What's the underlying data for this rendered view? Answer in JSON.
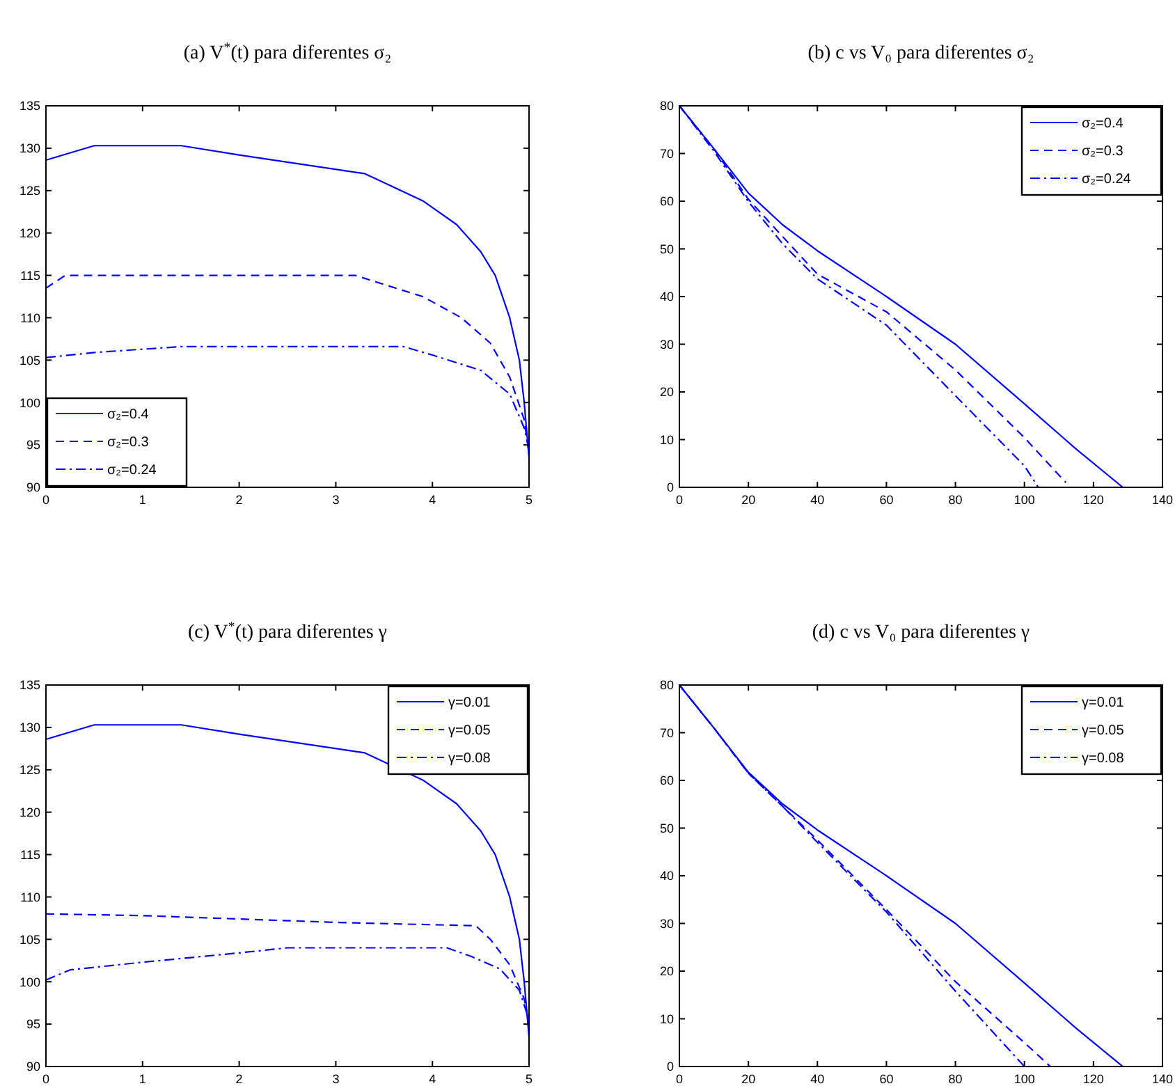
{
  "chart_data": [
    {
      "type": "line",
      "title": "(a) V$^{*}$(t) para diferentes σ₂",
      "xlim": [
        0,
        5
      ],
      "xticks": [
        0,
        1,
        2,
        3,
        4,
        5
      ],
      "ylim": [
        90,
        135
      ],
      "yticks": [
        90,
        95,
        100,
        105,
        110,
        115,
        120,
        125,
        130,
        135
      ],
      "grid": false,
      "legend": "bottom left",
      "series": [
        {
          "name": "σ₂=0.4",
          "color": "#0000ff",
          "line_style": "solid",
          "x": [
            0,
            0.5,
            1.4,
            2,
            3.3,
            3.9,
            4.25,
            4.5,
            4.65,
            4.8,
            4.9,
            4.95,
            5
          ],
          "values": [
            128.6,
            130.3,
            130.3,
            129.2,
            127,
            123.8,
            121,
            117.8,
            115,
            110,
            105,
            100,
            93.5
          ]
        },
        {
          "name": "σ₂=0.3",
          "color": "#0000ff",
          "line_style": "dashed",
          "x": [
            0,
            0.2,
            3.2,
            3.9,
            4.3,
            4.6,
            4.8,
            4.95,
            5
          ],
          "values": [
            113.5,
            115,
            115,
            112.5,
            110,
            107,
            103,
            98,
            94
          ]
        },
        {
          "name": "σ₂=0.24",
          "color": "#0000ff",
          "line_style": "dashdot",
          "x": [
            0,
            0.5,
            1.4,
            3.7,
            4,
            4.5,
            4.8,
            4.95,
            5
          ],
          "values": [
            105.3,
            105.9,
            106.6,
            106.6,
            105.6,
            103.8,
            101,
            97,
            94.5
          ]
        }
      ]
    },
    {
      "type": "line",
      "title": "(b) c vs V₀ para diferentes σ₂",
      "xlim": [
        0,
        140
      ],
      "xticks": [
        0,
        20,
        40,
        60,
        80,
        100,
        120,
        140
      ],
      "ylim": [
        0,
        80
      ],
      "yticks": [
        0,
        10,
        20,
        30,
        40,
        50,
        60,
        70,
        80
      ],
      "grid": false,
      "legend": "top right",
      "series": [
        {
          "name": "σ₂=0.4",
          "color": "#0000ff",
          "line_style": "solid",
          "x": [
            0,
            10,
            20,
            30,
            40,
            60,
            80,
            100,
            115,
            128.5
          ],
          "values": [
            80,
            71,
            61.7,
            55,
            49.6,
            40,
            30,
            17.5,
            8,
            0
          ]
        },
        {
          "name": "σ₂=0.3",
          "color": "#0000ff",
          "line_style": "dashed",
          "x": [
            0,
            10,
            20,
            30,
            40,
            60,
            80,
            100,
            112
          ],
          "values": [
            80,
            71,
            60.4,
            52.5,
            44.7,
            36.8,
            24.6,
            10.4,
            1
          ]
        },
        {
          "name": "σ₂=0.24",
          "color": "#0000ff",
          "line_style": "dashdot",
          "x": [
            0,
            10,
            20,
            30,
            40,
            60,
            80,
            100,
            104
          ],
          "values": [
            80,
            70.5,
            59.9,
            51,
            43.7,
            34,
            19.2,
            4.5,
            0
          ]
        }
      ]
    },
    {
      "type": "line",
      "title": "(c) V$^{*}$(t) para diferentes γ",
      "xlim": [
        0,
        5
      ],
      "xticks": [
        0,
        1,
        2,
        3,
        4,
        5
      ],
      "ylim": [
        90,
        135
      ],
      "yticks": [
        90,
        95,
        100,
        105,
        110,
        115,
        120,
        125,
        130,
        135
      ],
      "grid": false,
      "legend": "top right",
      "series": [
        {
          "name": "γ=0.01",
          "color": "#0000ff",
          "line_style": "solid",
          "x": [
            0,
            0.5,
            1.4,
            2,
            3.3,
            3.9,
            4.25,
            4.5,
            4.65,
            4.8,
            4.9,
            4.95,
            5
          ],
          "values": [
            128.6,
            130.3,
            130.3,
            129.2,
            127,
            123.8,
            121,
            117.8,
            115,
            110,
            105,
            100,
            93.5
          ]
        },
        {
          "name": "γ=0.05",
          "color": "#0000ff",
          "line_style": "dashed",
          "x": [
            0,
            1,
            2,
            3,
            4.45,
            4.6,
            4.8,
            4.95,
            5
          ],
          "values": [
            108,
            107.8,
            107.4,
            107,
            106.6,
            105,
            102,
            98,
            95
          ]
        },
        {
          "name": "γ=0.08",
          "color": "#0000ff",
          "line_style": "dashdot",
          "x": [
            0,
            0.25,
            1,
            2,
            2.5,
            4.15,
            4.4,
            4.7,
            4.9,
            5
          ],
          "values": [
            100.2,
            101.4,
            102.3,
            103.4,
            104,
            104,
            103,
            101.5,
            99,
            95.5
          ]
        }
      ]
    },
    {
      "type": "line",
      "title": "(d) c vs V₀ para diferentes γ",
      "xlim": [
        0,
        140
      ],
      "xticks": [
        0,
        20,
        40,
        60,
        80,
        100,
        120,
        140
      ],
      "ylim": [
        0,
        80
      ],
      "yticks": [
        0,
        10,
        20,
        30,
        40,
        50,
        60,
        70,
        80
      ],
      "grid": false,
      "legend": "top right",
      "series": [
        {
          "name": "γ=0.01",
          "color": "#0000ff",
          "line_style": "solid",
          "x": [
            0,
            10,
            20,
            30,
            40,
            60,
            80,
            100,
            115,
            128.5
          ],
          "values": [
            80,
            71,
            61.7,
            55,
            49.6,
            40,
            30,
            17.5,
            8,
            0
          ]
        },
        {
          "name": "γ=0.05",
          "color": "#0000ff",
          "line_style": "dashed",
          "x": [
            0,
            10,
            20,
            30,
            40,
            60,
            80,
            100,
            107.5
          ],
          "values": [
            80,
            71,
            61.5,
            54.5,
            47.5,
            32.9,
            17.8,
            5,
            0
          ]
        },
        {
          "name": "γ=0.08",
          "color": "#0000ff",
          "line_style": "dashdot",
          "x": [
            0,
            10,
            20,
            30,
            40,
            60,
            80,
            100
          ],
          "values": [
            80,
            71,
            61.5,
            54.5,
            47,
            32.4,
            15.8,
            0
          ]
        }
      ]
    }
  ]
}
